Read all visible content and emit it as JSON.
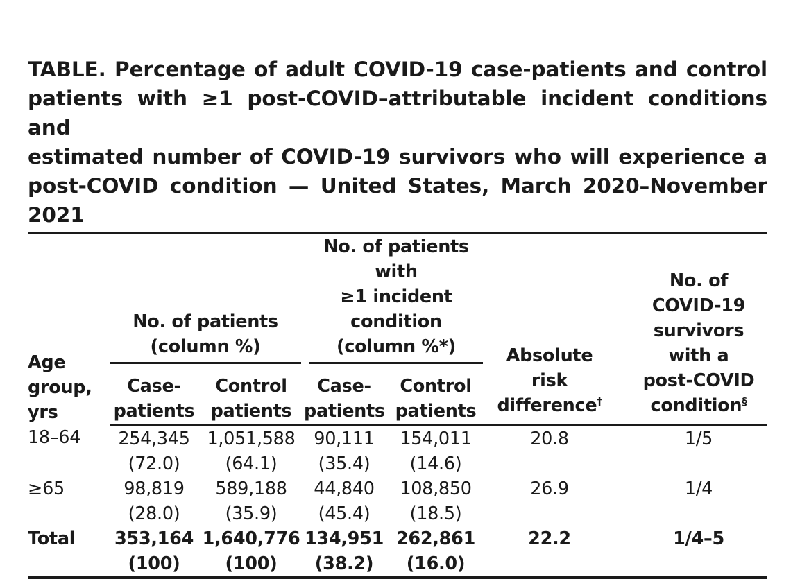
{
  "title": {
    "line1": "TABLE. Percentage of adult COVID-19 case-patients and control",
    "line2": "patients with ≥1 post-COVID–attributable incident conditions and",
    "line3": "estimated number of COVID-19 survivors who will experience a",
    "line4": "post-COVID condition — United States, March 2020–November 2021"
  },
  "header": {
    "age": [
      "Age",
      "group,",
      "yrs"
    ],
    "patients_group": [
      "No. of patients",
      "(column %)"
    ],
    "incident_group": [
      "No. of patients with",
      "≥1 incident",
      "condition",
      "(column %*)"
    ],
    "case_patients": [
      "Case-",
      "patients"
    ],
    "control_patients": [
      "Control",
      "patients"
    ],
    "ard": [
      "Absolute",
      "risk",
      "difference"
    ],
    "ard_mark": "†",
    "survivors": [
      "No. of",
      "COVID-19",
      "survivors",
      "with a",
      "post-COVID",
      "condition"
    ],
    "survivors_mark": "§"
  },
  "rows": [
    {
      "age": "18–64",
      "case_n": "254,345",
      "case_pct": "(72.0)",
      "control_n": "1,051,588",
      "control_pct": "(64.1)",
      "inc_case_n": "90,111",
      "inc_case_pct": "(35.4)",
      "inc_control_n": "154,011",
      "inc_control_pct": "(14.6)",
      "ard": "20.8",
      "survivors": "1/5"
    },
    {
      "age": "≥65",
      "case_n": "98,819",
      "case_pct": "(28.0)",
      "control_n": "589,188",
      "control_pct": "(35.9)",
      "inc_case_n": "44,840",
      "inc_case_pct": "(45.4)",
      "inc_control_n": "108,850",
      "inc_control_pct": "(18.5)",
      "ard": "26.9",
      "survivors": "1/4"
    }
  ],
  "total": {
    "age": "Total",
    "case_n": "353,164",
    "case_pct": "(100)",
    "control_n": "1,640,776",
    "control_pct": "(100)",
    "inc_case_n": "134,951",
    "inc_case_pct": "(38.2)",
    "inc_control_n": "262,861",
    "inc_control_pct": "(16.0)",
    "ard": "22.2",
    "survivors": "1/4–5"
  }
}
